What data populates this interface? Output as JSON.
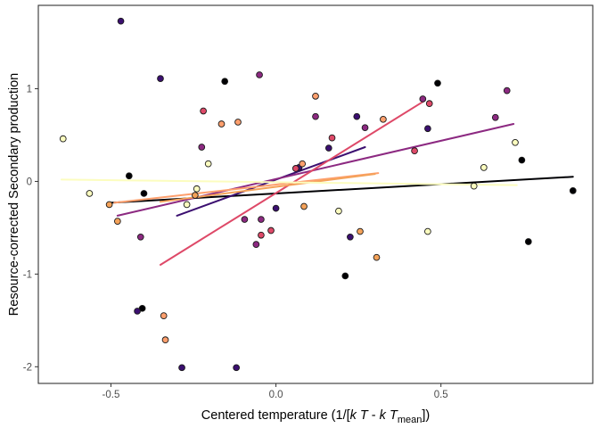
{
  "chart_data": {
    "type": "scatter",
    "xlabel": "Centered temperature (1/[k T - k T_mean])",
    "xlabel_parts": {
      "prefix": "Centered temperature (1/[",
      "k1": "k",
      "T1": "T",
      "minus": " - ",
      "k2": "k",
      "T2": "T",
      "subscript": "mean",
      "suffix": "])"
    },
    "ylabel": "Resource-corrected Secondary production",
    "xlim": [
      -0.72,
      0.96
    ],
    "ylim": [
      -2.18,
      1.9
    ],
    "xticks": [
      -0.5,
      0.0,
      0.5
    ],
    "xtick_labels": [
      "-0.5",
      "0.0",
      "0.5"
    ],
    "yticks": [
      -2,
      -1,
      0,
      1
    ],
    "ytick_labels": [
      "-2",
      "-1",
      "0",
      "1"
    ],
    "grid": false,
    "legend": "none",
    "point_outline_color": "#1a1a1a",
    "series": [
      {
        "color": "#000004",
        "points": [
          [
            -0.445,
            0.06
          ],
          [
            -0.4,
            -0.13
          ],
          [
            -0.405,
            -1.37
          ],
          [
            -0.155,
            1.08
          ],
          [
            0.21,
            -1.02
          ],
          [
            0.49,
            1.06
          ],
          [
            0.745,
            0.23
          ],
          [
            0.765,
            -0.65
          ],
          [
            0.9,
            -0.1
          ]
        ],
        "line": [
          [
            -0.5,
            -0.23
          ],
          [
            0.9,
            0.05
          ]
        ]
      },
      {
        "color": "#3b0f70",
        "points": [
          [
            -0.47,
            1.73
          ],
          [
            -0.35,
            1.11
          ],
          [
            -0.42,
            -1.4
          ],
          [
            -0.285,
            -2.01
          ],
          [
            -0.12,
            -2.01
          ],
          [
            0.0,
            -0.29
          ],
          [
            0.07,
            0.15
          ],
          [
            0.16,
            0.36
          ],
          [
            0.225,
            -0.6
          ],
          [
            0.245,
            0.7
          ],
          [
            0.46,
            0.57
          ]
        ],
        "line": [
          [
            -0.3,
            -0.37
          ],
          [
            0.27,
            0.37
          ]
        ]
      },
      {
        "color": "#8c2981",
        "points": [
          [
            -0.41,
            -0.6
          ],
          [
            -0.225,
            0.37
          ],
          [
            -0.06,
            -0.68
          ],
          [
            -0.05,
            1.15
          ],
          [
            -0.045,
            -0.41
          ],
          [
            -0.095,
            -0.41
          ],
          [
            0.12,
            0.7
          ],
          [
            0.27,
            0.58
          ],
          [
            0.445,
            0.89
          ],
          [
            0.665,
            0.69
          ],
          [
            0.7,
            0.98
          ]
        ],
        "line": [
          [
            -0.48,
            -0.37
          ],
          [
            0.72,
            0.62
          ]
        ]
      },
      {
        "color": "#de4968",
        "points": [
          [
            -0.22,
            0.76
          ],
          [
            -0.045,
            -0.58
          ],
          [
            -0.015,
            -0.53
          ],
          [
            0.06,
            0.14
          ],
          [
            0.17,
            0.47
          ],
          [
            0.42,
            0.33
          ],
          [
            0.465,
            0.84
          ]
        ],
        "line": [
          [
            -0.35,
            -0.9
          ],
          [
            0.45,
            0.87
          ]
        ]
      },
      {
        "color": "#fe9f6d",
        "points": [
          [
            -0.34,
            -1.45
          ],
          [
            -0.335,
            -1.71
          ],
          [
            -0.165,
            0.62
          ],
          [
            -0.115,
            0.64
          ],
          [
            0.08,
            0.19
          ],
          [
            0.12,
            0.92
          ],
          [
            0.325,
            0.67
          ]
        ],
        "line": [
          [
            -0.49,
            -0.23
          ],
          [
            0.31,
            0.09
          ]
        ]
      },
      {
        "color": "#f4a259",
        "points": [
          [
            -0.505,
            -0.25
          ],
          [
            -0.48,
            -0.43
          ],
          [
            -0.245,
            -0.15
          ],
          [
            0.085,
            -0.27
          ],
          [
            0.255,
            -0.54
          ],
          [
            0.305,
            -0.82
          ]
        ],
        "line": [
          [
            -0.35,
            -0.22
          ],
          [
            0.3,
            0.08
          ]
        ]
      },
      {
        "color": "#fcfdbf",
        "points": [
          [
            -0.645,
            0.46
          ],
          [
            -0.565,
            -0.13
          ],
          [
            -0.27,
            -0.25
          ],
          [
            -0.24,
            -0.08
          ],
          [
            -0.205,
            0.19
          ],
          [
            0.19,
            -0.32
          ],
          [
            0.46,
            -0.54
          ],
          [
            0.6,
            -0.05
          ],
          [
            0.63,
            0.15
          ],
          [
            0.725,
            0.42
          ]
        ],
        "line": [
          [
            -0.65,
            0.02
          ],
          [
            0.73,
            -0.04
          ]
        ]
      }
    ]
  }
}
